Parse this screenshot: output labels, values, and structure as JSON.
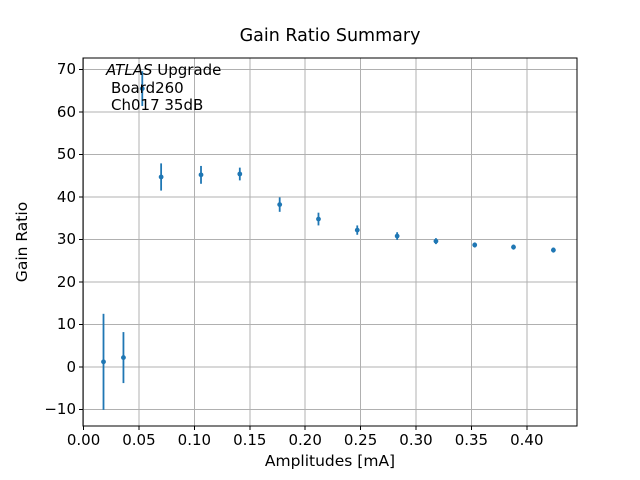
{
  "chart_data": {
    "type": "scatter",
    "title": "Gain Ratio Summary",
    "xlabel": "Amplitudes [mA]",
    "ylabel": "Gain Ratio",
    "grid": true,
    "legend": null,
    "xlim": [
      -0.0005,
      0.4453
    ],
    "ylim": [
      -13.9,
      72.7
    ],
    "xticks": {
      "values": [
        0.0,
        0.05,
        0.1,
        0.15,
        0.2,
        0.25,
        0.3,
        0.35,
        0.4
      ],
      "labels": [
        "0.00",
        "0.05",
        "0.10",
        "0.15",
        "0.20",
        "0.25",
        "0.30",
        "0.35",
        "0.40"
      ]
    },
    "yticks": {
      "values": [
        -10,
        0,
        10,
        20,
        30,
        40,
        50,
        60,
        70
      ],
      "labels": [
        "−10",
        "0",
        "10",
        "20",
        "30",
        "40",
        "50",
        "60",
        "70"
      ]
    },
    "annotation": {
      "line1_italic": "ATLAS",
      "line1_rest": " Upgrade",
      "line2": "Board260",
      "line3": "Ch017 35dB"
    },
    "series": [
      {
        "name": "gain-ratio-errorbar",
        "marker": "circle",
        "color": "#1f77b4",
        "points": [
          {
            "x": 0.018,
            "y": 1.2,
            "yerr": 11.3
          },
          {
            "x": 0.036,
            "y": 2.2,
            "yerr": 6.0
          },
          {
            "x": 0.053,
            "y": 65.5,
            "yerr": 4.1
          },
          {
            "x": 0.07,
            "y": 44.7,
            "yerr": 3.2
          },
          {
            "x": 0.106,
            "y": 45.2,
            "yerr": 2.1
          },
          {
            "x": 0.141,
            "y": 45.4,
            "yerr": 1.5
          },
          {
            "x": 0.177,
            "y": 38.2,
            "yerr": 1.7
          },
          {
            "x": 0.212,
            "y": 34.8,
            "yerr": 1.5
          },
          {
            "x": 0.247,
            "y": 32.2,
            "yerr": 1.1
          },
          {
            "x": 0.283,
            "y": 30.8,
            "yerr": 0.9
          },
          {
            "x": 0.318,
            "y": 29.6,
            "yerr": 0.7
          },
          {
            "x": 0.353,
            "y": 28.7,
            "yerr": 0.6
          },
          {
            "x": 0.388,
            "y": 28.2,
            "yerr": 0.6
          },
          {
            "x": 0.424,
            "y": 27.5,
            "yerr": 0.6
          }
        ]
      }
    ],
    "colors": {
      "marker": "#1f77b4",
      "grid": "#b0b0b0",
      "spine": "#000000",
      "background": "#ffffff",
      "text": "#000000"
    }
  }
}
